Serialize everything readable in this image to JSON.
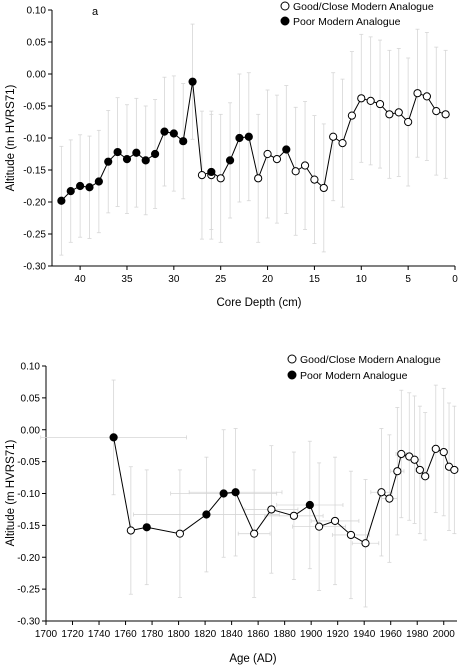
{
  "colors": {
    "poor_fill": "#000000",
    "good_fill": "#ffffff",
    "errorbar": "#d6d6d6"
  },
  "chart_data": [
    {
      "type": "scatter",
      "panel_label": "a",
      "xlabel": "Core Depth (cm)",
      "ylabel": "Altitude (m HVRS71)",
      "xlim": [
        43,
        0
      ],
      "ylim": [
        -0.3,
        0.1
      ],
      "x_ticks": [
        40,
        35,
        30,
        25,
        20,
        15,
        10,
        5,
        0
      ],
      "y_ticks": [
        0.1,
        0.05,
        0.0,
        -0.05,
        -0.1,
        -0.15,
        -0.2,
        -0.25,
        -0.3
      ],
      "y_tick_labels": [
        "0.10",
        "0.05",
        "0.00",
        "-0.05",
        "-0.10",
        "-0.15",
        "-0.20",
        "-0.25",
        "-0.30"
      ],
      "legend": {
        "position": "top-right",
        "entries": [
          "Good/Close Modern Analogue",
          "Poor Modern Analogue"
        ]
      },
      "series": [
        {
          "name": "Good/Close Modern Analogue",
          "marker": "open-circle",
          "x": [
            27,
            26,
            25,
            21,
            20,
            19,
            17,
            16,
            15,
            14,
            13,
            12,
            11,
            10,
            9,
            8,
            7,
            6,
            5,
            4,
            3,
            2,
            1
          ],
          "y": [
            -0.158,
            -0.158,
            -0.163,
            -0.163,
            -0.125,
            -0.133,
            -0.152,
            -0.143,
            -0.165,
            -0.178,
            -0.098,
            -0.108,
            -0.065,
            -0.038,
            -0.042,
            -0.047,
            -0.063,
            -0.06,
            -0.075,
            -0.03,
            -0.035,
            -0.058,
            -0.063
          ],
          "err": [
            0.1,
            0.1,
            0.1,
            0.1,
            0.1,
            0.1,
            0.1,
            0.1,
            0.1,
            0.1,
            0.1,
            0.1,
            0.1,
            0.1,
            0.1,
            0.1,
            0.1,
            0.1,
            0.1,
            0.1,
            0.1,
            0.1,
            0.1
          ]
        },
        {
          "name": "Poor Modern Analogue",
          "marker": "filled-circle",
          "x": [
            42,
            41,
            40,
            39,
            38,
            37,
            36,
            35,
            34,
            33,
            32,
            31,
            30,
            29,
            28,
            26,
            24,
            23,
            22,
            18
          ],
          "y": [
            -0.198,
            -0.183,
            -0.175,
            -0.177,
            -0.168,
            -0.137,
            -0.122,
            -0.133,
            -0.123,
            -0.135,
            -0.125,
            -0.09,
            -0.093,
            -0.105,
            -0.012,
            -0.153,
            -0.135,
            -0.1,
            -0.098,
            -0.118
          ],
          "err": [
            0.085,
            0.08,
            0.08,
            0.08,
            0.08,
            0.08,
            0.085,
            0.085,
            0.085,
            0.085,
            0.085,
            0.085,
            0.09,
            0.09,
            0.09,
            0.09,
            0.09,
            0.1,
            0.1,
            0.1
          ]
        }
      ],
      "line_order_x": [
        42,
        41,
        40,
        39,
        38,
        37,
        36,
        35,
        34,
        33,
        32,
        31,
        30,
        29,
        28,
        27,
        26,
        25,
        24,
        23,
        22,
        21,
        20,
        19,
        18,
        17,
        16,
        15,
        14,
        13,
        12,
        11,
        10,
        9,
        8,
        7,
        6,
        5,
        4,
        3,
        2,
        1
      ],
      "line_order_y": [
        -0.198,
        -0.183,
        -0.175,
        -0.177,
        -0.168,
        -0.137,
        -0.122,
        -0.133,
        -0.123,
        -0.135,
        -0.125,
        -0.09,
        -0.093,
        -0.105,
        -0.012,
        -0.158,
        -0.153,
        -0.163,
        -0.135,
        -0.1,
        -0.098,
        -0.163,
        -0.125,
        -0.133,
        -0.118,
        -0.152,
        -0.143,
        -0.165,
        -0.178,
        -0.098,
        -0.108,
        -0.065,
        -0.038,
        -0.042,
        -0.047,
        -0.063,
        -0.06,
        -0.075,
        -0.03,
        -0.035,
        -0.058,
        -0.063
      ]
    },
    {
      "type": "scatter",
      "panel_label": "",
      "xlabel": "Age (AD)",
      "ylabel": "Altitude (m HVRS71)",
      "xlim": [
        1700,
        2010
      ],
      "ylim": [
        -0.3,
        0.1
      ],
      "x_ticks": [
        1700,
        1720,
        1740,
        1760,
        1780,
        1800,
        1820,
        1840,
        1860,
        1880,
        1900,
        1920,
        1940,
        1960,
        1980,
        2000
      ],
      "y_ticks": [
        0.1,
        0.05,
        0.0,
        -0.05,
        -0.1,
        -0.15,
        -0.2,
        -0.25,
        -0.3
      ],
      "y_tick_labels": [
        "0.10",
        "0.05",
        "0.00",
        "-0.05",
        "-0.10",
        "-0.15",
        "-0.20",
        "-0.25",
        "-0.30"
      ],
      "legend": {
        "position": "top-right",
        "entries": [
          "Good/Close Modern Analogue",
          "Poor Modern Analogue"
        ]
      },
      "series": [
        {
          "name": "Good/Close Modern Analogue",
          "marker": "open-circle",
          "x": [
            1764,
            1801,
            1857,
            1870,
            1887,
            1906,
            1918,
            1930,
            1941,
            1953,
            1959,
            1965,
            1968,
            1974,
            1978,
            1982,
            1986,
            1994,
            2000,
            2004,
            2008
          ],
          "y": [
            -0.158,
            -0.163,
            -0.163,
            -0.125,
            -0.135,
            -0.152,
            -0.143,
            -0.165,
            -0.178,
            -0.098,
            -0.108,
            -0.065,
            -0.038,
            -0.042,
            -0.047,
            -0.063,
            -0.073,
            -0.03,
            -0.035,
            -0.058,
            -0.063
          ],
          "xerr": [
            0,
            0,
            12,
            20,
            22,
            20,
            18,
            14,
            10,
            8,
            6,
            5,
            4,
            4,
            4,
            3,
            3,
            2,
            2,
            2,
            2
          ],
          "yerr": [
            0.1,
            0.1,
            0.1,
            0.1,
            0.1,
            0.1,
            0.1,
            0.1,
            0.1,
            0.1,
            0.1,
            0.1,
            0.1,
            0.1,
            0.1,
            0.1,
            0.1,
            0.1,
            0.1,
            0.1,
            0.1
          ]
        },
        {
          "name": "Poor Modern Analogue",
          "marker": "filled-circle",
          "x": [
            1751,
            1776,
            1821,
            1834,
            1843,
            1899
          ],
          "y": [
            -0.012,
            -0.153,
            -0.133,
            -0.1,
            -0.098,
            -0.118
          ],
          "xerr": [
            55,
            0,
            55,
            40,
            35,
            25
          ],
          "yerr": [
            0.09,
            0.09,
            0.09,
            0.1,
            0.1,
            0.1
          ]
        }
      ],
      "line_order_x": [
        1751,
        1764,
        1776,
        1801,
        1821,
        1834,
        1843,
        1857,
        1870,
        1887,
        1899,
        1906,
        1918,
        1930,
        1941,
        1953,
        1959,
        1965,
        1968,
        1974,
        1978,
        1982,
        1986,
        1994,
        2000,
        2004,
        2008
      ],
      "line_order_y": [
        -0.012,
        -0.158,
        -0.153,
        -0.163,
        -0.133,
        -0.1,
        -0.098,
        -0.163,
        -0.125,
        -0.135,
        -0.118,
        -0.152,
        -0.143,
        -0.165,
        -0.178,
        -0.098,
        -0.108,
        -0.065,
        -0.038,
        -0.042,
        -0.047,
        -0.063,
        -0.073,
        -0.03,
        -0.035,
        -0.058,
        -0.063
      ]
    }
  ]
}
